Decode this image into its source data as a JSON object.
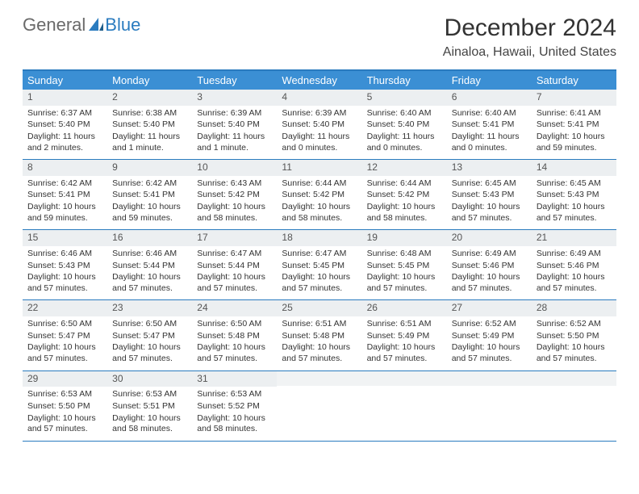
{
  "logo": {
    "word1": "General",
    "word2": "Blue"
  },
  "title": "December 2024",
  "location": "Ainaloa, Hawaii, United States",
  "colors": {
    "header_bg": "#3b8fd4",
    "border": "#2a7bbf",
    "daynum_bg": "#eceff1",
    "logo_gray": "#6a6a6a",
    "logo_blue": "#2a7bbf"
  },
  "weekdays": [
    "Sunday",
    "Monday",
    "Tuesday",
    "Wednesday",
    "Thursday",
    "Friday",
    "Saturday"
  ],
  "weeks": [
    [
      {
        "n": "1",
        "sr": "6:37 AM",
        "ss": "5:40 PM",
        "dl": "11 hours and 2 minutes."
      },
      {
        "n": "2",
        "sr": "6:38 AM",
        "ss": "5:40 PM",
        "dl": "11 hours and 1 minute."
      },
      {
        "n": "3",
        "sr": "6:39 AM",
        "ss": "5:40 PM",
        "dl": "11 hours and 1 minute."
      },
      {
        "n": "4",
        "sr": "6:39 AM",
        "ss": "5:40 PM",
        "dl": "11 hours and 0 minutes."
      },
      {
        "n": "5",
        "sr": "6:40 AM",
        "ss": "5:40 PM",
        "dl": "11 hours and 0 minutes."
      },
      {
        "n": "6",
        "sr": "6:40 AM",
        "ss": "5:41 PM",
        "dl": "11 hours and 0 minutes."
      },
      {
        "n": "7",
        "sr": "6:41 AM",
        "ss": "5:41 PM",
        "dl": "10 hours and 59 minutes."
      }
    ],
    [
      {
        "n": "8",
        "sr": "6:42 AM",
        "ss": "5:41 PM",
        "dl": "10 hours and 59 minutes."
      },
      {
        "n": "9",
        "sr": "6:42 AM",
        "ss": "5:41 PM",
        "dl": "10 hours and 59 minutes."
      },
      {
        "n": "10",
        "sr": "6:43 AM",
        "ss": "5:42 PM",
        "dl": "10 hours and 58 minutes."
      },
      {
        "n": "11",
        "sr": "6:44 AM",
        "ss": "5:42 PM",
        "dl": "10 hours and 58 minutes."
      },
      {
        "n": "12",
        "sr": "6:44 AM",
        "ss": "5:42 PM",
        "dl": "10 hours and 58 minutes."
      },
      {
        "n": "13",
        "sr": "6:45 AM",
        "ss": "5:43 PM",
        "dl": "10 hours and 57 minutes."
      },
      {
        "n": "14",
        "sr": "6:45 AM",
        "ss": "5:43 PM",
        "dl": "10 hours and 57 minutes."
      }
    ],
    [
      {
        "n": "15",
        "sr": "6:46 AM",
        "ss": "5:43 PM",
        "dl": "10 hours and 57 minutes."
      },
      {
        "n": "16",
        "sr": "6:46 AM",
        "ss": "5:44 PM",
        "dl": "10 hours and 57 minutes."
      },
      {
        "n": "17",
        "sr": "6:47 AM",
        "ss": "5:44 PM",
        "dl": "10 hours and 57 minutes."
      },
      {
        "n": "18",
        "sr": "6:47 AM",
        "ss": "5:45 PM",
        "dl": "10 hours and 57 minutes."
      },
      {
        "n": "19",
        "sr": "6:48 AM",
        "ss": "5:45 PM",
        "dl": "10 hours and 57 minutes."
      },
      {
        "n": "20",
        "sr": "6:49 AM",
        "ss": "5:46 PM",
        "dl": "10 hours and 57 minutes."
      },
      {
        "n": "21",
        "sr": "6:49 AM",
        "ss": "5:46 PM",
        "dl": "10 hours and 57 minutes."
      }
    ],
    [
      {
        "n": "22",
        "sr": "6:50 AM",
        "ss": "5:47 PM",
        "dl": "10 hours and 57 minutes."
      },
      {
        "n": "23",
        "sr": "6:50 AM",
        "ss": "5:47 PM",
        "dl": "10 hours and 57 minutes."
      },
      {
        "n": "24",
        "sr": "6:50 AM",
        "ss": "5:48 PM",
        "dl": "10 hours and 57 minutes."
      },
      {
        "n": "25",
        "sr": "6:51 AM",
        "ss": "5:48 PM",
        "dl": "10 hours and 57 minutes."
      },
      {
        "n": "26",
        "sr": "6:51 AM",
        "ss": "5:49 PM",
        "dl": "10 hours and 57 minutes."
      },
      {
        "n": "27",
        "sr": "6:52 AM",
        "ss": "5:49 PM",
        "dl": "10 hours and 57 minutes."
      },
      {
        "n": "28",
        "sr": "6:52 AM",
        "ss": "5:50 PM",
        "dl": "10 hours and 57 minutes."
      }
    ],
    [
      {
        "n": "29",
        "sr": "6:53 AM",
        "ss": "5:50 PM",
        "dl": "10 hours and 57 minutes."
      },
      {
        "n": "30",
        "sr": "6:53 AM",
        "ss": "5:51 PM",
        "dl": "10 hours and 58 minutes."
      },
      {
        "n": "31",
        "sr": "6:53 AM",
        "ss": "5:52 PM",
        "dl": "10 hours and 58 minutes."
      },
      null,
      null,
      null,
      null
    ]
  ],
  "labels": {
    "sunrise_prefix": "Sunrise: ",
    "sunset_prefix": "Sunset: ",
    "daylight_prefix": "Daylight: "
  }
}
